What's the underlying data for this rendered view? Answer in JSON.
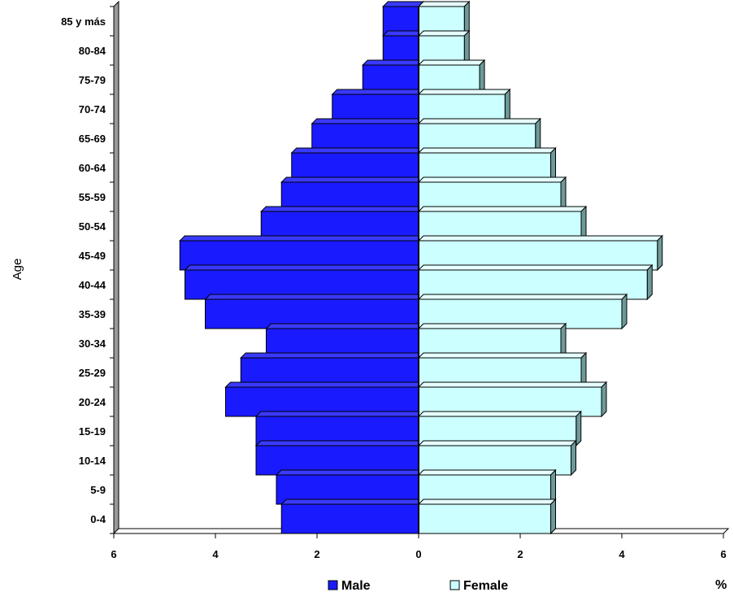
{
  "chart_data": {
    "type": "bar",
    "orientation": "horizontal-pyramid",
    "title": "",
    "ylabel": "Age",
    "xlabel": "",
    "x_unit": "%",
    "xlim": [
      -6,
      6
    ],
    "x_ticks": [
      -6,
      -4,
      -2,
      0,
      2,
      4,
      6
    ],
    "x_tick_labels": [
      "6",
      "4",
      "2",
      "0",
      "2",
      "4",
      "6"
    ],
    "grid": false,
    "legend_position": "bottom",
    "categories": [
      "0-4",
      "5-9",
      "10-14",
      "15-19",
      "20-24",
      "25-29",
      "30-34",
      "35-39",
      "40-44",
      "45-49",
      "50-54",
      "55-59",
      "60-64",
      "65-69",
      "70-74",
      "75-79",
      "80-84",
      "85 y más"
    ],
    "series": [
      {
        "name": "Male",
        "color": "#1a1aff",
        "values": [
          2.7,
          2.8,
          3.2,
          3.2,
          3.8,
          3.5,
          3.0,
          4.2,
          4.6,
          4.7,
          3.1,
          2.7,
          2.5,
          2.1,
          1.7,
          1.1,
          0.7,
          0.7
        ]
      },
      {
        "name": "Female",
        "color": "#ccffff",
        "values": [
          2.6,
          2.6,
          3.0,
          3.1,
          3.6,
          3.2,
          2.8,
          4.0,
          4.5,
          4.7,
          3.2,
          2.8,
          2.6,
          2.3,
          1.7,
          1.2,
          0.9,
          0.9
        ]
      }
    ]
  }
}
